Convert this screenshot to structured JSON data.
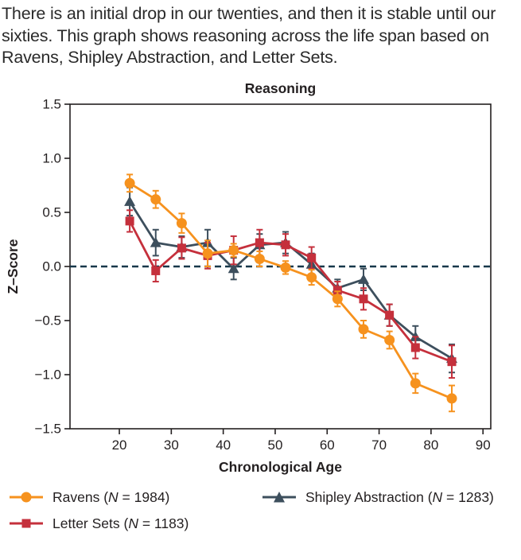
{
  "intro": {
    "text": "There is an initial drop in our twenties, and then it is stable until our sixties. This graph shows reasoning across the life span based on Ravens, Shipley Abstraction, and Letter Sets."
  },
  "chart_data": {
    "type": "line",
    "title": "Reasoning",
    "xlabel": "Chronological Age",
    "ylabel": "Z–Score",
    "xlim": [
      10.5,
      91.5
    ],
    "ylim": [
      -1.5,
      1.5
    ],
    "xticks": [
      20,
      30,
      40,
      50,
      60,
      70,
      80,
      90
    ],
    "yticks": [
      1.5,
      1.0,
      0.5,
      0.0,
      -0.5,
      -1.0,
      -1.5
    ],
    "ytick_labels": [
      "1.5",
      "1.0",
      "0.5",
      "0.0",
      "−0.5",
      "−1.0",
      "−1.5"
    ],
    "grid": false,
    "zero_line": {
      "y": 0,
      "style": "dashed",
      "color": "#17384a"
    },
    "x": [
      22,
      27,
      32,
      37,
      42,
      47,
      52,
      57,
      62,
      67,
      72,
      77,
      84
    ],
    "series": [
      {
        "name": "Ravens",
        "n": "1984",
        "marker": "circle",
        "color": "#f6921e",
        "values": [
          0.77,
          0.62,
          0.4,
          0.12,
          0.15,
          0.07,
          -0.01,
          -0.1,
          -0.3,
          -0.58,
          -0.68,
          -1.08,
          -1.22
        ],
        "errors": [
          0.08,
          0.08,
          0.09,
          0.12,
          0.06,
          0.07,
          0.06,
          0.07,
          0.07,
          0.08,
          0.08,
          0.09,
          0.12
        ]
      },
      {
        "name": "Letter Sets",
        "n": "1183",
        "marker": "square",
        "color": "#c5303c",
        "values": [
          0.42,
          -0.04,
          0.17,
          0.1,
          0.15,
          0.22,
          0.2,
          0.08,
          -0.22,
          -0.3,
          -0.45,
          -0.75,
          -0.88
        ],
        "errors": [
          0.1,
          0.1,
          0.1,
          0.12,
          0.13,
          0.12,
          0.1,
          0.1,
          0.08,
          0.1,
          0.1,
          0.1,
          0.15
        ]
      },
      {
        "name": "Shipley Abstraction",
        "n": "1283",
        "marker": "triangle",
        "color": "#3d4f5d",
        "values": [
          0.6,
          0.22,
          0.18,
          0.22,
          -0.02,
          0.2,
          0.22,
          0.02,
          -0.2,
          -0.12,
          -0.45,
          -0.65,
          -0.85
        ],
        "errors": [
          0.13,
          0.12,
          0.1,
          0.12,
          0.1,
          0.1,
          0.1,
          0.1,
          0.08,
          0.1,
          0.1,
          0.1,
          0.13
        ]
      }
    ],
    "legend": {
      "position": "bottom",
      "order": [
        "Ravens",
        "Letter Sets",
        "Shipley Abstraction"
      ],
      "label_parts": {
        "open": " (",
        "n_symbol": "N",
        "equals": " = ",
        "close": ")"
      }
    },
    "text_color": "#231f20"
  }
}
